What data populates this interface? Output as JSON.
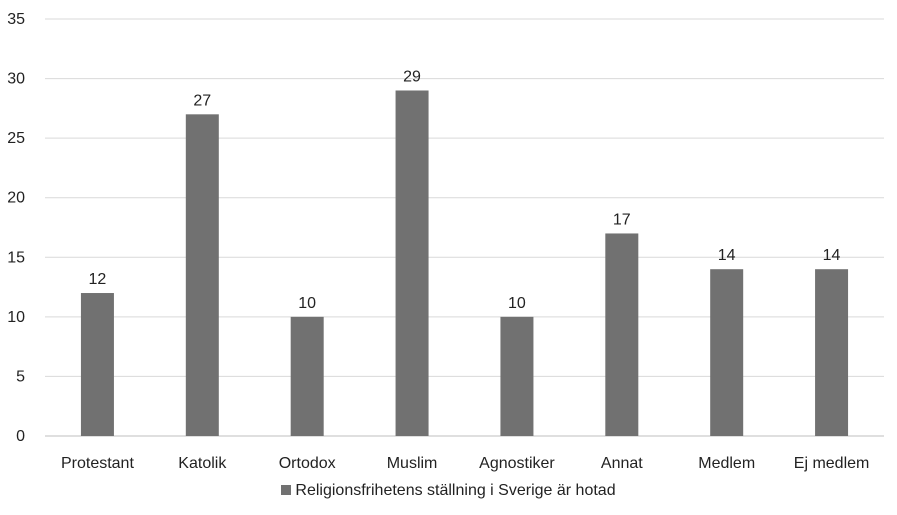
{
  "chart_data": {
    "type": "bar",
    "categories": [
      "Protestant",
      "Katolik",
      "Ortodox",
      "Muslim",
      "Agnostiker",
      "Annat",
      "Medlem",
      "Ej medlem"
    ],
    "series": [
      {
        "name": "Religionsfrihetens ställning i Sverige är hotad",
        "values": [
          12,
          27,
          10,
          29,
          10,
          17,
          14,
          14
        ],
        "color": "#717171"
      }
    ],
    "ylim": [
      0,
      35
    ],
    "yticks": [
      0,
      5,
      10,
      15,
      20,
      25,
      30,
      35
    ],
    "grid": true,
    "data_labels": true,
    "legend_position": "bottom"
  }
}
